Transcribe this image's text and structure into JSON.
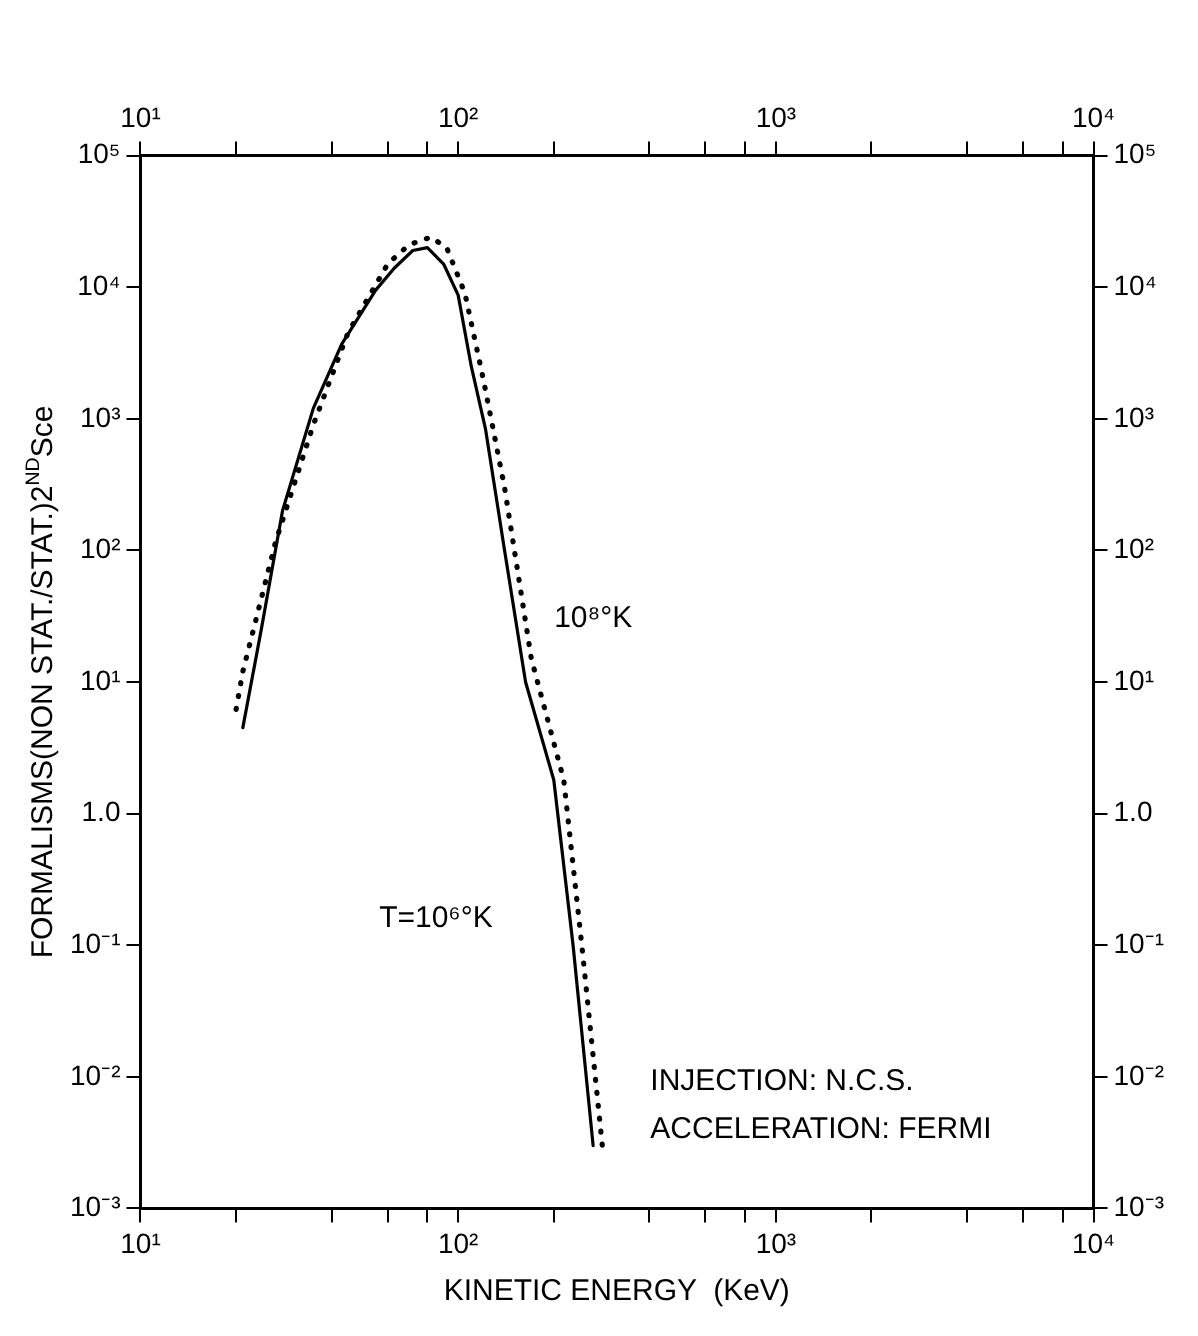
{
  "chart_data": {
    "type": "line",
    "xlabel": "KINETIC ENERGY  (KeV)",
    "ylabel": "FORMALISMS(NON STAT./STAT.)2$^{ND}$Sce",
    "log": "xy",
    "grid": false,
    "marker": "none",
    "series": [
      {
        "color": "#000000",
        "line_style": "solid",
        "x": [
          21,
          24,
          28,
          35,
          43,
          55,
          63,
          72,
          80,
          90,
          100,
          110,
          122,
          140,
          163,
          200,
          230,
          266
        ],
        "values": [
          4.5,
          25,
          200,
          1200,
          3700,
          9500,
          14000,
          19000,
          20000,
          15000,
          8700,
          2500,
          830,
          100,
          10,
          1.8,
          0.1,
          0.003
        ]
      },
      {
        "color": "#000000",
        "line_style": "dotted",
        "x": [
          20,
          21,
          26.6,
          35,
          45,
          60,
          70,
          82,
          92,
          105,
          120,
          140,
          170,
          215,
          245,
          286
        ],
        "values": [
          6.2,
          12,
          115,
          900,
          4500,
          15000,
          21000,
          24000,
          20000,
          9000,
          2000,
          300,
          15,
          1.8,
          0.1,
          0.0026
        ]
      }
    ],
    "annotations": [
      "10⁸°K",
      "T=10⁶°K",
      "INJECTION: N.C.S.",
      "ACCELERATION: FERMI"
    ],
    "xlim": [
      10,
      10000
    ],
    "xticks": [
      {
        "value": 10,
        "label": "10¹"
      },
      {
        "value": 20,
        "label": null
      },
      {
        "value": 40,
        "label": null
      },
      {
        "value": 60,
        "label": null
      },
      {
        "value": 80,
        "label": null
      },
      {
        "value": 100,
        "label": "10²"
      },
      {
        "value": 200,
        "label": null
      },
      {
        "value": 400,
        "label": null
      },
      {
        "value": 600,
        "label": null
      },
      {
        "value": 800,
        "label": null
      },
      {
        "value": 1000,
        "label": "10³"
      },
      {
        "value": 2000,
        "label": null
      },
      {
        "value": 4000,
        "label": null
      },
      {
        "value": 6000,
        "label": null
      },
      {
        "value": 8000,
        "label": null
      },
      {
        "value": 10000,
        "label": "10⁴"
      }
    ],
    "ylim": [
      0.001,
      100000
    ],
    "yticks": [
      {
        "value": 0.001,
        "label": "10⁻³"
      },
      {
        "value": 0.01,
        "label": "10⁻²"
      },
      {
        "value": 0.1,
        "label": "10⁻¹"
      },
      {
        "value": 1,
        "label": "1.0"
      },
      {
        "value": 10,
        "label": "10¹"
      },
      {
        "value": 100,
        "label": "10²"
      },
      {
        "value": 1000,
        "label": "10³"
      },
      {
        "value": 10000,
        "label": "10⁴"
      },
      {
        "value": 100000,
        "label": "10⁵"
      }
    ]
  }
}
